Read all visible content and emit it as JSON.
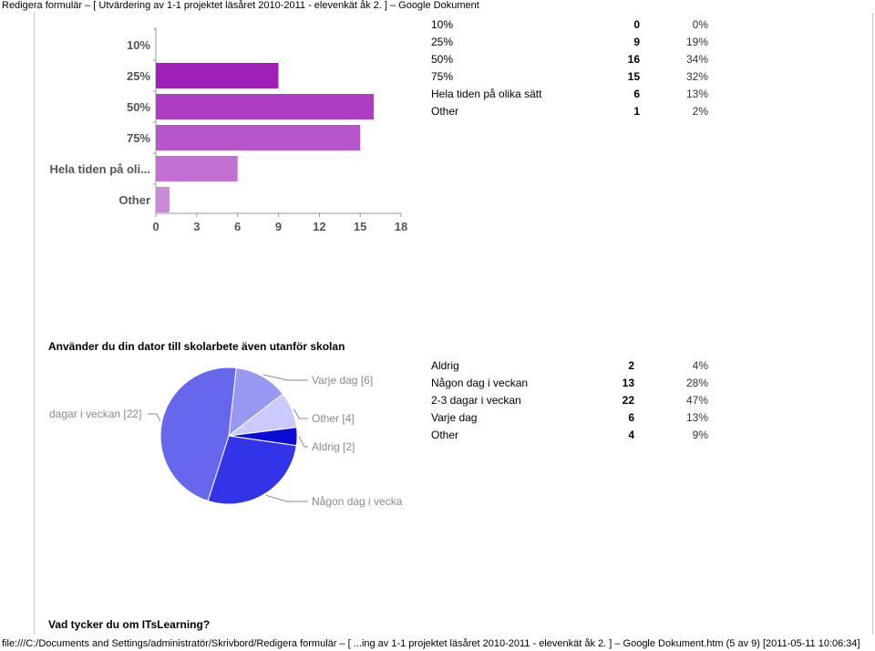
{
  "browser_title": "Redigera formulär – [ Utvärdering av 1-1 projektet läsåret 2010-2011 - elevenkät åk 2. ] – Google Dokument",
  "footer": "file:///C:/Documents and Settings/administratör/Skrivbord/Redigera formulär – [ ...ing av 1-1 projektet läsåret 2010-2011 - elevenkät åk 2. ] – Google Dokument.htm (5 av 9) [2011-05-11 10:06:34]",
  "questions": {
    "q1_title": "Använder du din dator till skolarbete även utanför skolan",
    "q2_title": "Vad tycker du om ITsLearning?"
  },
  "bar_stats": [
    {
      "label": "10%",
      "count": "0",
      "percent": "0%"
    },
    {
      "label": "25%",
      "count": "9",
      "percent": "19%"
    },
    {
      "label": "50%",
      "count": "16",
      "percent": "34%"
    },
    {
      "label": "75%",
      "count": "15",
      "percent": "32%"
    },
    {
      "label": "Hela tiden på olika sätt",
      "count": "6",
      "percent": "13%"
    },
    {
      "label": "Other",
      "count": "1",
      "percent": "2%"
    }
  ],
  "pie_stats": [
    {
      "label": "Aldrig",
      "count": "2",
      "percent": "4%"
    },
    {
      "label": "Någon dag i veckan",
      "count": "13",
      "percent": "28%"
    },
    {
      "label": "2-3 dagar i veckan",
      "count": "22",
      "percent": "47%"
    },
    {
      "label": "Varje dag",
      "count": "6",
      "percent": "13%"
    },
    {
      "label": "Other",
      "count": "4",
      "percent": "9%"
    }
  ],
  "chart_data": [
    {
      "type": "bar",
      "orientation": "horizontal",
      "categories": [
        "10%",
        "25%",
        "50%",
        "75%",
        "Hela tiden på oli...",
        "Other"
      ],
      "values": [
        0,
        9,
        16,
        15,
        6,
        1
      ],
      "xticks": [
        0,
        3,
        6,
        9,
        12,
        15,
        18
      ],
      "xlim": [
        0,
        18
      ],
      "colors": [
        "#8c0aac",
        "#9f1fb8",
        "#ad3dc2",
        "#b955cb",
        "#c46fd3",
        "#cc88dc"
      ],
      "grid": false
    },
    {
      "type": "pie",
      "slices": [
        {
          "label": "Varje dag [6]",
          "value": 6,
          "color": "#9898f2"
        },
        {
          "label": "Other [4]",
          "value": 4,
          "color": "#cacafc"
        },
        {
          "label": "Aldrig [2]",
          "value": 2,
          "color": "#0b0bd6"
        },
        {
          "label": "Någon dag i vecka",
          "value": 13,
          "color": "#3333ea"
        },
        {
          "label": "dagar i veckan [22]",
          "value": 22,
          "color": "#6767ee"
        }
      ]
    }
  ]
}
